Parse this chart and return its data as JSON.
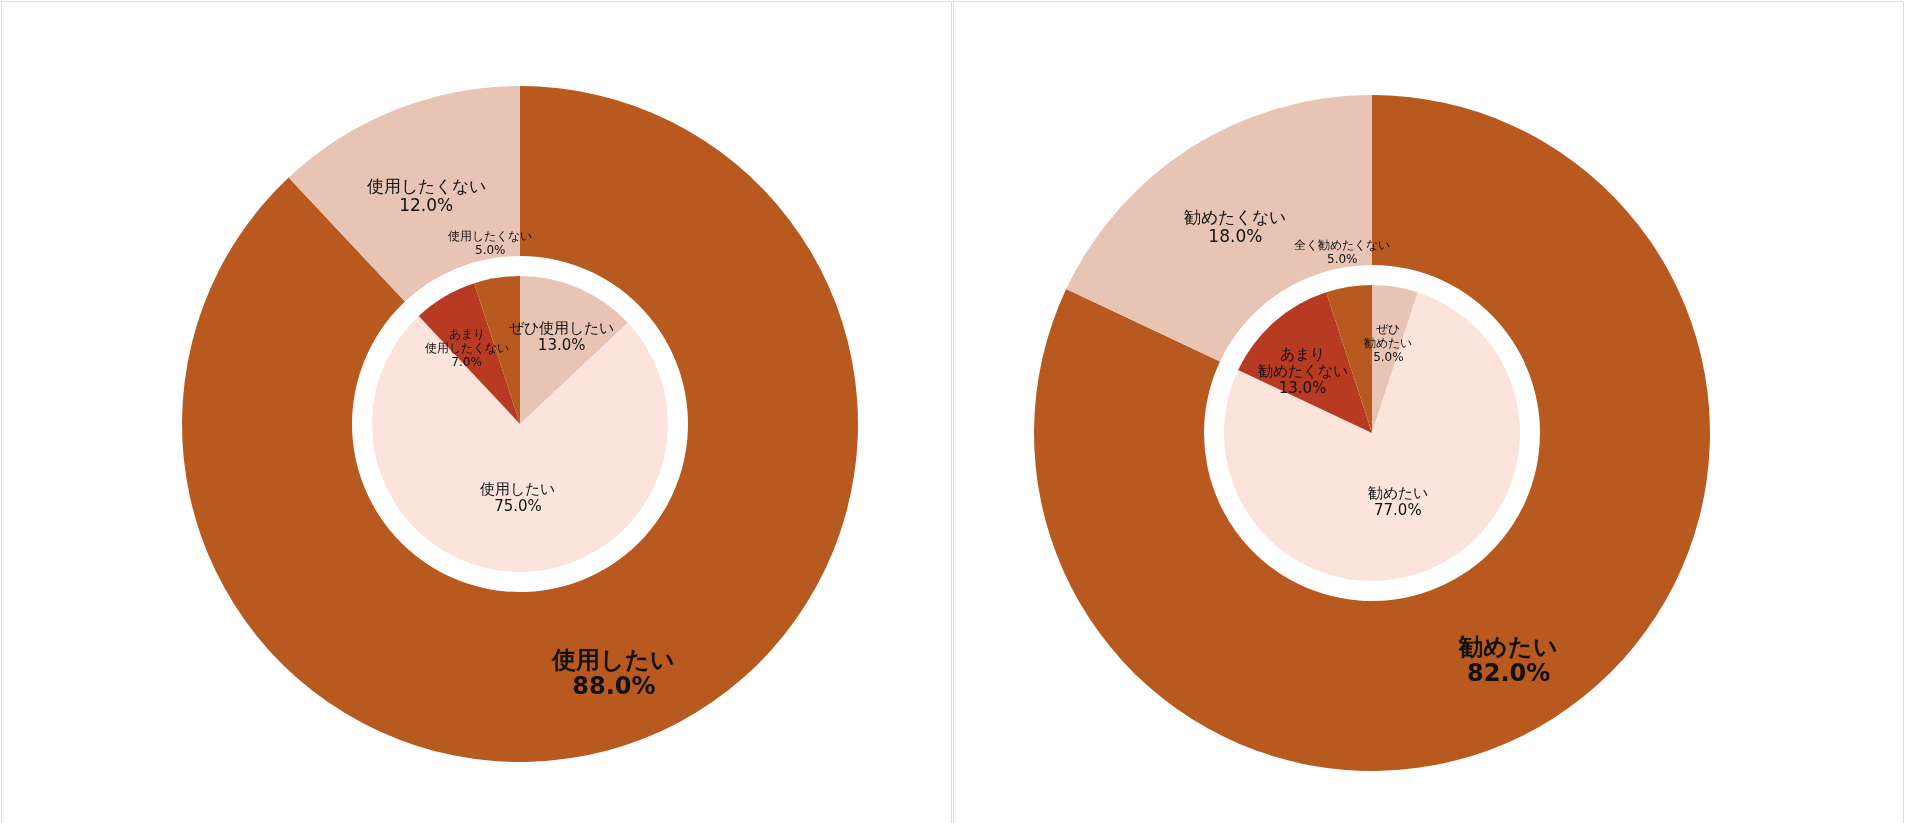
{
  "chart_data": [
    {
      "type": "donut",
      "series": [
        {
          "type": "donut",
          "values": [
            88.0,
            12.0
          ],
          "colors": [
            "#b85a1f",
            "#e8c4b4"
          ],
          "value_labels": [
            "使用したい\n88.0%",
            "使用したくない\n12.0%"
          ]
        },
        {
          "type": "pie",
          "values": [
            13.0,
            75.0,
            7.0,
            5.0
          ],
          "colors": [
            "#e8c4b4",
            "#fce4dc",
            "#b83a22",
            "#b85a1f"
          ],
          "value_labels": [
            "ぜひ使用したい\n13.0%",
            "使用したい\n75.0%",
            "あまり使用したくない\n7.0%",
            "使用したくない\n5.0%"
          ]
        }
      ]
    },
    {
      "type": "donut",
      "series": [
        {
          "type": "donut",
          "values": [
            82.0,
            18.0
          ],
          "colors": [
            "#b85a1f",
            "#e8c4b4"
          ],
          "value_labels": [
            "勧めたい\n82.0%",
            "勧めたくない\n18.0%"
          ]
        },
        {
          "type": "pie",
          "values": [
            5.0,
            77.0,
            13.0,
            5.0
          ],
          "colors": [
            "#e8c4b4",
            "#fce4dc",
            "#b83a22",
            "#b85a1f"
          ],
          "value_labels": [
            "ぜひ勧めたい\n5.0%",
            "勧めたい\n77.0%",
            "あまり勧めたくない\n13.0%",
            "全く勧めたくない\n5.0%"
          ]
        }
      ]
    }
  ]
}
